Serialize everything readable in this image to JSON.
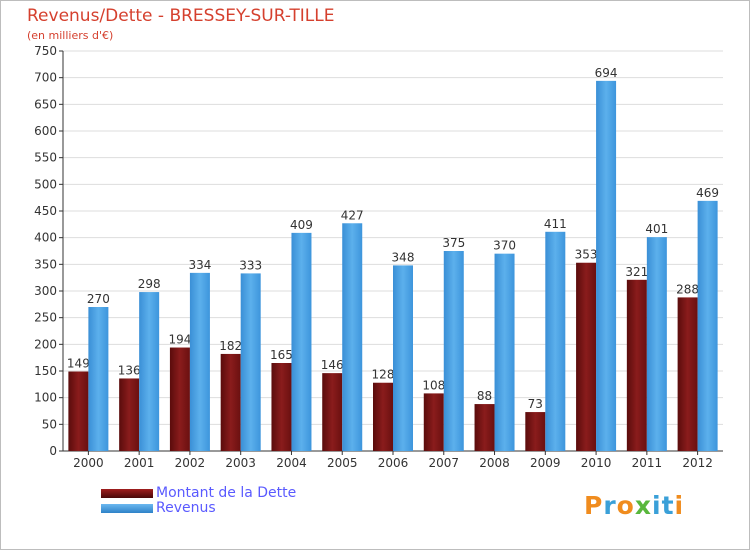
{
  "chart_data": {
    "type": "bar",
    "title": "Revenus/Dette - BRESSEY-SUR-TILLE",
    "subtitle": "(en milliers d'€)",
    "categories": [
      "2000",
      "2001",
      "2002",
      "2003",
      "2004",
      "2005",
      "2006",
      "2007",
      "2008",
      "2009",
      "2010",
      "2011",
      "2012"
    ],
    "series": [
      {
        "name": "Montant de la Dette",
        "color": "#7b1414",
        "values": [
          149,
          136,
          194,
          182,
          165,
          146,
          128,
          108,
          88,
          73,
          353,
          321,
          288
        ]
      },
      {
        "name": "Revenus",
        "color": "#4ea3e4",
        "values": [
          270,
          298,
          334,
          333,
          409,
          427,
          348,
          375,
          370,
          411,
          694,
          401,
          469
        ]
      }
    ],
    "ylim": [
      0,
      750
    ],
    "yticks": [
      0,
      50,
      100,
      150,
      200,
      250,
      300,
      350,
      400,
      450,
      500,
      550,
      600,
      650,
      700,
      750
    ],
    "grid": true,
    "xlabel": "",
    "ylabel": ""
  },
  "legend": {
    "dette_label": "Montant de la Dette",
    "revenus_label": "Revenus"
  },
  "branding": {
    "logo_text": "Proxiti",
    "logo_letters": [
      "P",
      "r",
      "o",
      "x",
      "i",
      "t",
      "i"
    ],
    "logo_colors": [
      "#f08c1e",
      "#3aa0d8",
      "#f08c1e",
      "#59b73c",
      "#3aa0d8",
      "#3aa0d8",
      "#f08c1e"
    ]
  },
  "colors": {
    "title": "#d5402e",
    "legend_text": "#5a5aff",
    "grid": "#dddddd",
    "axis": "#333333"
  }
}
